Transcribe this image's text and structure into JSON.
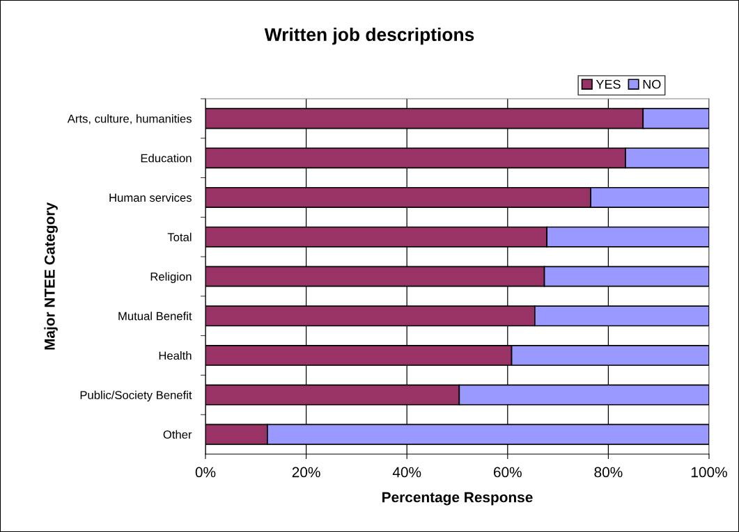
{
  "chart_data": {
    "type": "bar",
    "orientation": "horizontal",
    "stacked": true,
    "title": "Written job descriptions",
    "xlabel": "Percentage Response",
    "ylabel": "Major NTEE Category",
    "categories": [
      "Arts, culture, humanities",
      "Education",
      "Human services",
      "Total",
      "Religion",
      "Mutual Benefit",
      "Health",
      "Public/Society Benefit",
      "Other"
    ],
    "series": [
      {
        "name": "YES",
        "color": "#993366",
        "values": [
          86.9,
          83.4,
          76.5,
          67.8,
          67.3,
          65.4,
          60.8,
          50.4,
          12.3
        ]
      },
      {
        "name": "NO",
        "color": "#9999ff",
        "values": [
          13.1,
          16.6,
          23.5,
          32.2,
          32.7,
          34.6,
          39.2,
          49.6,
          87.7
        ]
      }
    ],
    "xlim": [
      0,
      100
    ],
    "xticks": [
      {
        "value": 0,
        "label": "0%"
      },
      {
        "value": 20,
        "label": "20%"
      },
      {
        "value": 40,
        "label": "40%"
      },
      {
        "value": 60,
        "label": "60%"
      },
      {
        "value": 80,
        "label": "80%"
      },
      {
        "value": 100,
        "label": "100%"
      }
    ],
    "grid": "x",
    "legend": "top right"
  }
}
